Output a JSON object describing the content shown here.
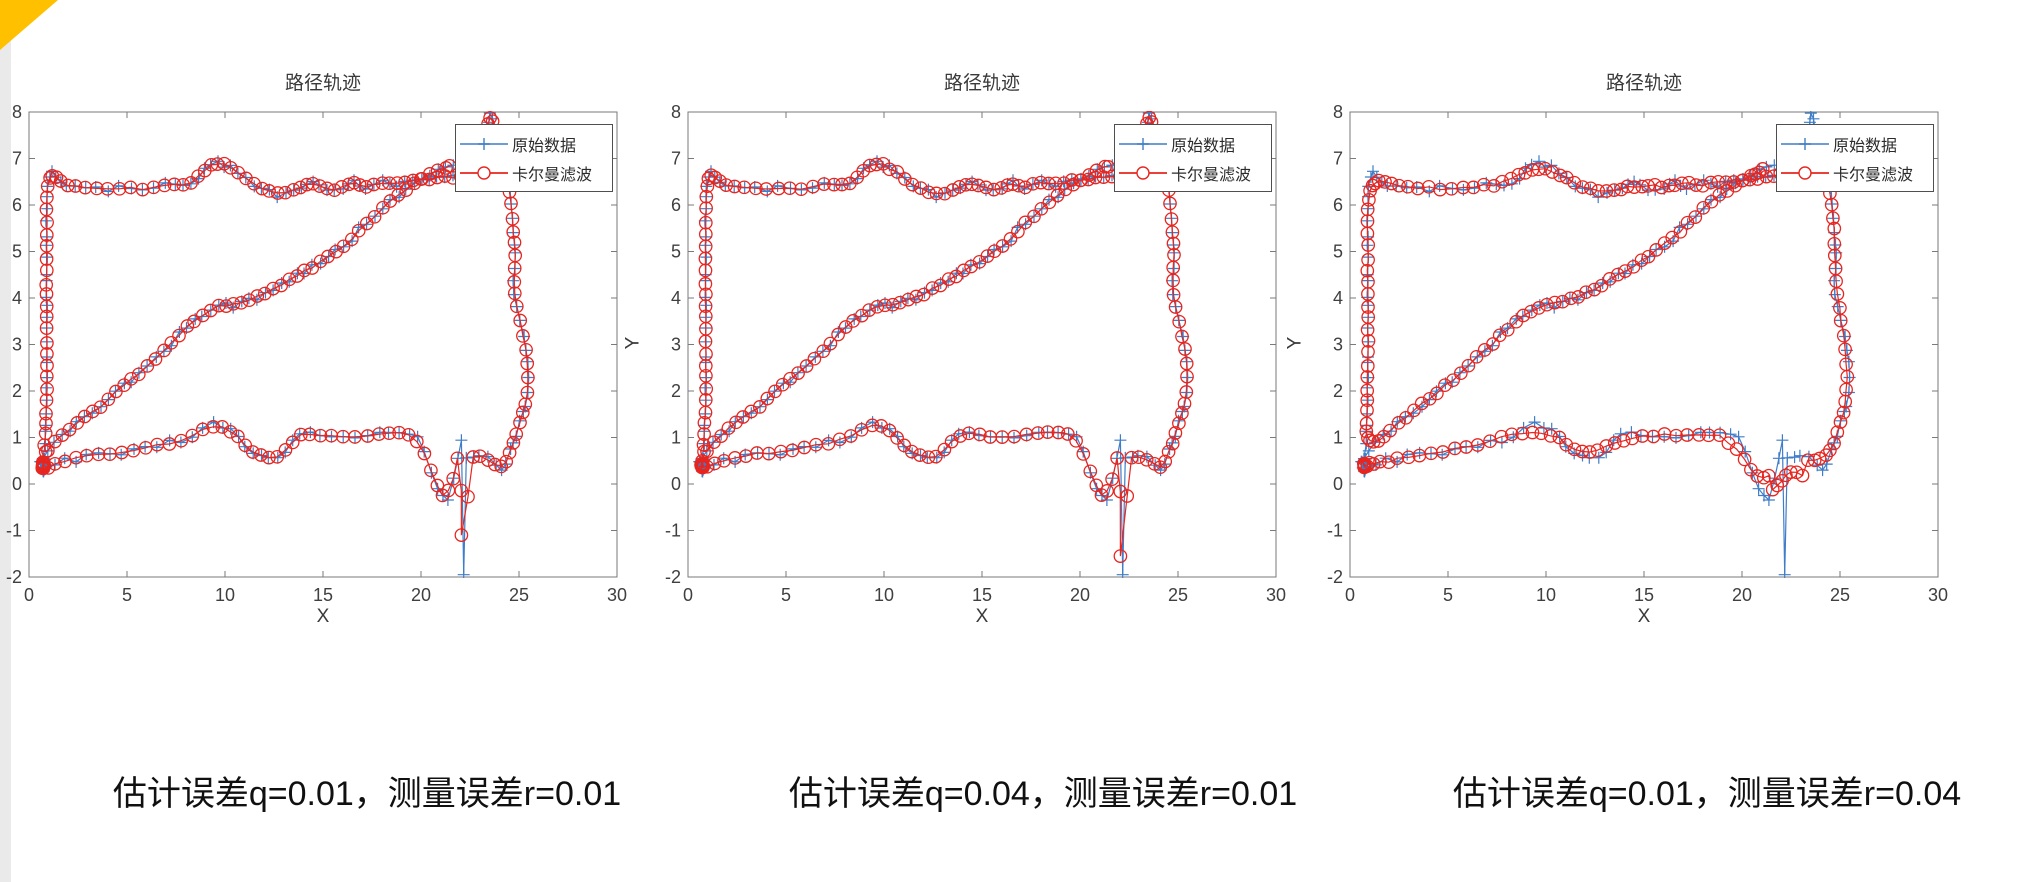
{
  "page": {
    "background": "#ffffff",
    "edge_strip_color": "#eaeaea",
    "corner_accent_color": "#ffc000"
  },
  "chart_data": {
    "type": "line",
    "shared": {
      "title": "路径轨迹",
      "xlabel": "X",
      "ylabel": "Y",
      "xlim": [
        0,
        30
      ],
      "ylim": [
        -2,
        8
      ],
      "xticks": [
        0,
        5,
        10,
        15,
        20,
        25,
        30
      ],
      "yticks": [
        -2,
        -1,
        0,
        1,
        2,
        3,
        4,
        5,
        6,
        7,
        8
      ],
      "grid": false,
      "legend_position": "northeast",
      "legend": [
        {
          "label": "原始数据",
          "marker": "plus",
          "color": "#3f7dc8"
        },
        {
          "label": "卡尔曼滤波",
          "marker": "circle",
          "color": "#e8251f"
        }
      ],
      "axis_color": "#7a7a7a",
      "tick_label_color": "#3f3f3f",
      "segment_order": [
        "start_cluster",
        "bottom_edge",
        "right_edge",
        "top_right",
        "top_edge",
        "left_edge",
        "diagonal"
      ],
      "path_segments": {
        "start_cluster": [
          [
            0.7,
            0.45
          ],
          [
            0.62,
            0.32
          ],
          [
            0.75,
            0.27
          ],
          [
            0.84,
            0.4
          ],
          [
            0.7,
            0.55
          ],
          [
            0.6,
            0.42
          ],
          [
            0.72,
            0.3
          ],
          [
            0.86,
            0.36
          ],
          [
            0.78,
            0.52
          ],
          [
            0.66,
            0.48
          ],
          [
            0.74,
            0.38
          ]
        ],
        "bottom_edge": [
          [
            0.88,
            0.44
          ],
          [
            1.35,
            0.48
          ],
          [
            1.85,
            0.51
          ],
          [
            2.4,
            0.55
          ],
          [
            2.95,
            0.58
          ],
          [
            3.55,
            0.62
          ],
          [
            4.15,
            0.66
          ],
          [
            4.75,
            0.7
          ],
          [
            5.35,
            0.74
          ],
          [
            5.95,
            0.78
          ],
          [
            6.55,
            0.82
          ],
          [
            7.15,
            0.88
          ],
          [
            7.75,
            0.94
          ],
          [
            8.35,
            1.04
          ],
          [
            8.9,
            1.18
          ],
          [
            9.4,
            1.3
          ],
          [
            9.85,
            1.27
          ],
          [
            10.25,
            1.2
          ],
          [
            10.65,
            1.08
          ],
          [
            11.05,
            0.88
          ],
          [
            11.45,
            0.66
          ],
          [
            11.85,
            0.55
          ],
          [
            12.25,
            0.53
          ],
          [
            12.65,
            0.6
          ],
          [
            13.05,
            0.73
          ],
          [
            13.45,
            0.89
          ],
          [
            13.85,
            1.0
          ],
          [
            14.35,
            1.05
          ],
          [
            14.85,
            1.03
          ],
          [
            15.45,
            1.0
          ],
          [
            16.05,
            0.98
          ],
          [
            16.65,
            1.0
          ],
          [
            17.25,
            1.01
          ],
          [
            17.85,
            1.05
          ],
          [
            18.35,
            1.1
          ],
          [
            18.9,
            1.17
          ],
          [
            19.4,
            1.1
          ],
          [
            19.8,
            0.95
          ],
          [
            20.2,
            0.7
          ],
          [
            20.5,
            0.3
          ],
          [
            20.8,
            -0.05
          ],
          [
            21.1,
            -0.28
          ],
          [
            21.4,
            -0.33
          ],
          [
            21.7,
            0.1
          ],
          [
            21.9,
            0.6
          ],
          [
            22.05,
            0.88
          ],
          [
            22.18,
            -1.95
          ],
          [
            22.32,
            0.62
          ],
          [
            22.65,
            0.6
          ],
          [
            23.0,
            0.57
          ],
          [
            23.4,
            0.53
          ],
          [
            23.8,
            0.45
          ],
          [
            24.1,
            0.3
          ]
        ],
        "right_edge": [
          [
            24.35,
            0.5
          ],
          [
            24.55,
            0.72
          ],
          [
            24.72,
            0.92
          ],
          [
            24.88,
            1.1
          ],
          [
            25.05,
            1.28
          ],
          [
            25.22,
            1.48
          ],
          [
            25.35,
            1.72
          ],
          [
            25.45,
            2.0
          ],
          [
            25.5,
            2.3
          ],
          [
            25.46,
            2.6
          ],
          [
            25.36,
            2.9
          ],
          [
            25.22,
            3.2
          ],
          [
            25.04,
            3.5
          ],
          [
            24.88,
            3.8
          ],
          [
            24.76,
            4.1
          ],
          [
            24.72,
            4.4
          ],
          [
            24.78,
            4.68
          ],
          [
            24.84,
            4.94
          ],
          [
            24.79,
            5.2
          ],
          [
            24.72,
            5.48
          ],
          [
            24.66,
            5.76
          ],
          [
            24.6,
            6.04
          ],
          [
            24.52,
            6.3
          ],
          [
            24.44,
            6.52
          ]
        ],
        "top_right": [
          [
            24.3,
            6.7
          ],
          [
            24.12,
            6.95
          ],
          [
            23.95,
            7.25
          ],
          [
            23.78,
            7.55
          ],
          [
            23.62,
            7.9
          ],
          [
            23.52,
            7.97
          ],
          [
            23.42,
            7.78
          ],
          [
            23.28,
            7.42
          ],
          [
            23.12,
            7.05
          ],
          [
            22.92,
            6.82
          ],
          [
            22.7,
            6.68
          ]
        ],
        "top_edge": [
          [
            22.4,
            6.6
          ],
          [
            22.0,
            6.54
          ],
          [
            21.6,
            6.58
          ],
          [
            21.2,
            6.62
          ],
          [
            20.8,
            6.55
          ],
          [
            20.4,
            6.58
          ],
          [
            20.0,
            6.52
          ],
          [
            19.6,
            6.48
          ],
          [
            19.2,
            6.53
          ],
          [
            18.8,
            6.46
          ],
          [
            18.4,
            6.42
          ],
          [
            18.0,
            6.47
          ],
          [
            17.6,
            6.41
          ],
          [
            17.2,
            6.38
          ],
          [
            16.9,
            6.48
          ],
          [
            16.6,
            6.54
          ],
          [
            16.3,
            6.42
          ],
          [
            16.0,
            6.3
          ],
          [
            15.6,
            6.3
          ],
          [
            15.2,
            6.33
          ],
          [
            14.8,
            6.44
          ],
          [
            14.5,
            6.53
          ],
          [
            14.2,
            6.5
          ],
          [
            13.9,
            6.4
          ],
          [
            13.5,
            6.31
          ],
          [
            13.1,
            6.27
          ],
          [
            12.7,
            6.25
          ],
          [
            12.3,
            6.26
          ],
          [
            11.9,
            6.3
          ],
          [
            11.5,
            6.4
          ],
          [
            11.1,
            6.54
          ],
          [
            10.7,
            6.7
          ],
          [
            10.3,
            6.82
          ],
          [
            9.95,
            6.88
          ],
          [
            9.6,
            6.9
          ],
          [
            9.25,
            6.82
          ],
          [
            8.95,
            6.74
          ],
          [
            8.65,
            6.62
          ],
          [
            8.3,
            6.52
          ],
          [
            7.9,
            6.46
          ],
          [
            7.45,
            6.42
          ],
          [
            6.95,
            6.4
          ],
          [
            6.4,
            6.38
          ],
          [
            5.8,
            6.36
          ],
          [
            5.2,
            6.35
          ],
          [
            4.6,
            6.34
          ],
          [
            4.0,
            6.33
          ],
          [
            3.4,
            6.33
          ],
          [
            2.85,
            6.34
          ],
          [
            2.35,
            6.36
          ],
          [
            1.92,
            6.41
          ],
          [
            1.6,
            6.48
          ],
          [
            1.35,
            6.59
          ],
          [
            1.17,
            6.65
          ],
          [
            1.02,
            6.56
          ]
        ],
        "left_edge": [
          [
            0.95,
            6.38
          ],
          [
            0.9,
            6.12
          ],
          [
            0.94,
            5.86
          ],
          [
            0.88,
            5.6
          ],
          [
            0.93,
            5.34
          ],
          [
            0.88,
            5.08
          ],
          [
            0.92,
            4.82
          ],
          [
            0.88,
            4.56
          ],
          [
            0.92,
            4.3
          ],
          [
            0.88,
            4.05
          ],
          [
            0.92,
            3.8
          ],
          [
            0.9,
            3.55
          ],
          [
            0.93,
            3.3
          ],
          [
            0.88,
            3.05
          ],
          [
            0.92,
            2.8
          ],
          [
            0.9,
            2.55
          ],
          [
            0.92,
            2.3
          ],
          [
            0.88,
            2.05
          ],
          [
            0.9,
            1.8
          ],
          [
            0.92,
            1.56
          ],
          [
            0.88,
            1.32
          ],
          [
            0.84,
            1.08
          ],
          [
            0.8,
            0.84
          ],
          [
            0.75,
            0.62
          ]
        ],
        "diagonal": [
          [
            0.98,
            0.68
          ],
          [
            1.3,
            0.84
          ],
          [
            1.68,
            1.0
          ],
          [
            2.06,
            1.16
          ],
          [
            2.45,
            1.32
          ],
          [
            2.85,
            1.45
          ],
          [
            3.25,
            1.56
          ],
          [
            3.65,
            1.66
          ],
          [
            4.05,
            1.8
          ],
          [
            4.45,
            1.95
          ],
          [
            4.85,
            2.1
          ],
          [
            5.25,
            2.26
          ],
          [
            5.65,
            2.42
          ],
          [
            6.05,
            2.58
          ],
          [
            6.45,
            2.72
          ],
          [
            6.85,
            2.88
          ],
          [
            7.25,
            3.05
          ],
          [
            7.65,
            3.22
          ],
          [
            8.05,
            3.4
          ],
          [
            8.45,
            3.55
          ],
          [
            8.85,
            3.67
          ],
          [
            9.25,
            3.75
          ],
          [
            9.65,
            3.8
          ],
          [
            10.05,
            3.82
          ],
          [
            10.45,
            3.85
          ],
          [
            10.85,
            3.9
          ],
          [
            11.25,
            3.95
          ],
          [
            11.65,
            4.02
          ],
          [
            12.05,
            4.1
          ],
          [
            12.45,
            4.21
          ],
          [
            12.85,
            4.32
          ],
          [
            13.25,
            4.42
          ],
          [
            13.65,
            4.52
          ],
          [
            14.05,
            4.6
          ],
          [
            14.45,
            4.68
          ],
          [
            14.85,
            4.78
          ],
          [
            15.25,
            4.9
          ],
          [
            15.65,
            5.02
          ],
          [
            16.05,
            5.15
          ],
          [
            16.45,
            5.29
          ],
          [
            16.85,
            5.44
          ],
          [
            17.25,
            5.59
          ],
          [
            17.65,
            5.74
          ],
          [
            18.05,
            5.89
          ],
          [
            18.45,
            6.04
          ],
          [
            18.85,
            6.19
          ],
          [
            19.25,
            6.34
          ],
          [
            19.65,
            6.48
          ],
          [
            20.05,
            6.6
          ],
          [
            20.45,
            6.7
          ],
          [
            20.85,
            6.79
          ],
          [
            21.25,
            6.86
          ],
          [
            21.65,
            6.93
          ]
        ]
      }
    },
    "charts": [
      {
        "caption": "估计误差q=0.01，测量误差r=0.01",
        "q": 0.01,
        "r": 0.01,
        "blue_noise": 0.08,
        "red_window": 3,
        "red_noise": 0.02,
        "red_spike_dip": -1.1,
        "ylabel_visible": false
      },
      {
        "caption": "估计误差q=0.04，测量误差r=0.01",
        "q": 0.04,
        "r": 0.01,
        "blue_noise": 0.08,
        "red_window": 3,
        "red_noise": 0.02,
        "red_spike_dip": -1.55,
        "ylabel_visible": true
      },
      {
        "caption": "估计误差q=0.01，测量误差r=0.04",
        "q": 0.01,
        "r": 0.04,
        "blue_noise": 0.08,
        "red_window": 7,
        "red_noise": 0.03,
        "red_spike_dip": null,
        "ylabel_visible": true
      }
    ]
  }
}
